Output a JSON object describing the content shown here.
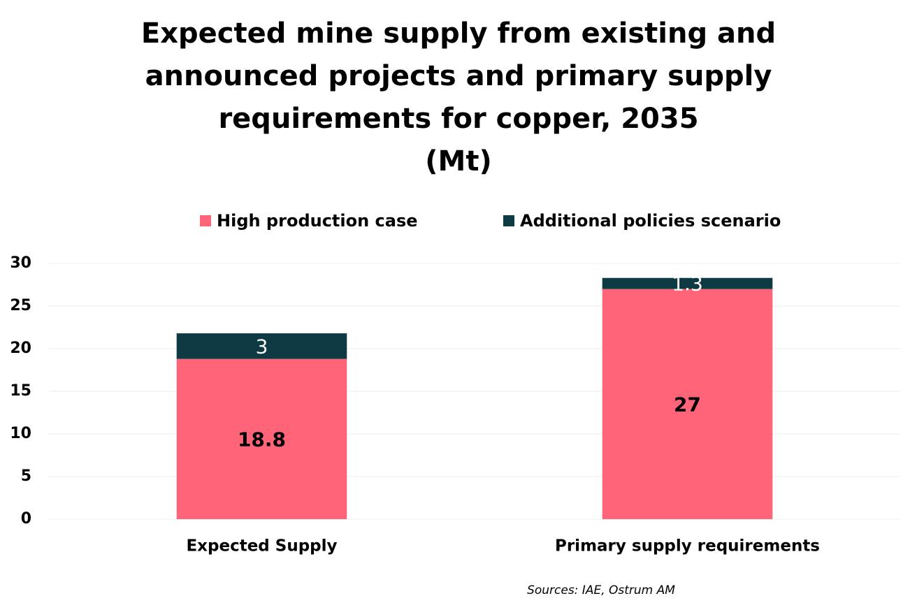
{
  "chart_data": {
    "type": "stacked_bar",
    "title": [
      "Expected mine supply from existing and",
      "announced projects and primary supply",
      "requirements for copper, 2035",
      "(Mt)"
    ],
    "categories": [
      "Expected Supply",
      "Primary supply requirements"
    ],
    "series": [
      {
        "name": "High production case",
        "color": "#ff6479",
        "label_color": "#000000",
        "values": [
          18.8,
          27
        ]
      },
      {
        "name": "Additional policies scenario",
        "color": "#0e3a44",
        "label_color": "#ffffff",
        "values": [
          3,
          1.3
        ]
      }
    ],
    "ylim": [
      0,
      30
    ],
    "yticks": [
      0,
      5,
      10,
      15,
      20,
      25,
      30
    ],
    "grid": true,
    "source": "Sources: IAE, Ostrum AM"
  }
}
